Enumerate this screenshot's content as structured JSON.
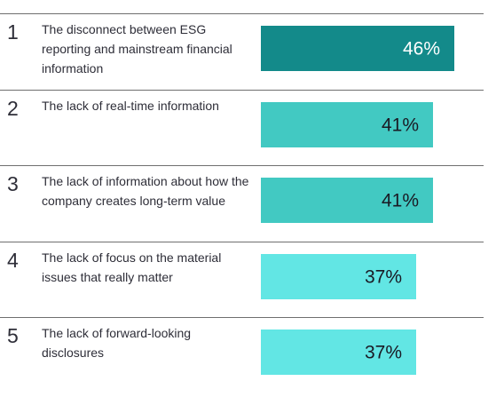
{
  "chart_data": {
    "type": "bar",
    "orientation": "horizontal",
    "categories": [
      "The disconnect between ESG reporting and mainstream financial information",
      "The lack of real-time information",
      "The lack of information about how the company creates long-term value",
      "The lack of focus on the material issues that really matter",
      "The lack of forward-looking disclosures"
    ],
    "ranks": [
      "1",
      "2",
      "3",
      "4",
      "5"
    ],
    "values": [
      46,
      41,
      41,
      37,
      37
    ],
    "data_labels": [
      "46%",
      "41%",
      "41%",
      "37%",
      "37%"
    ],
    "xlim": [
      0,
      100
    ],
    "grid": false,
    "legend": "none",
    "title": "",
    "xlabel": "",
    "ylabel": ""
  },
  "colors": {
    "rule": "#6f6f6f",
    "text": "#2e2e38",
    "bars": [
      "#138a8a",
      "#42c9c2",
      "#42c9c2",
      "#62e6e4",
      "#62e6e4"
    ],
    "bar_labels": [
      "#ffffff",
      "#1a1a24",
      "#1a1a24",
      "#1a1a24",
      "#1a1a24"
    ]
  }
}
